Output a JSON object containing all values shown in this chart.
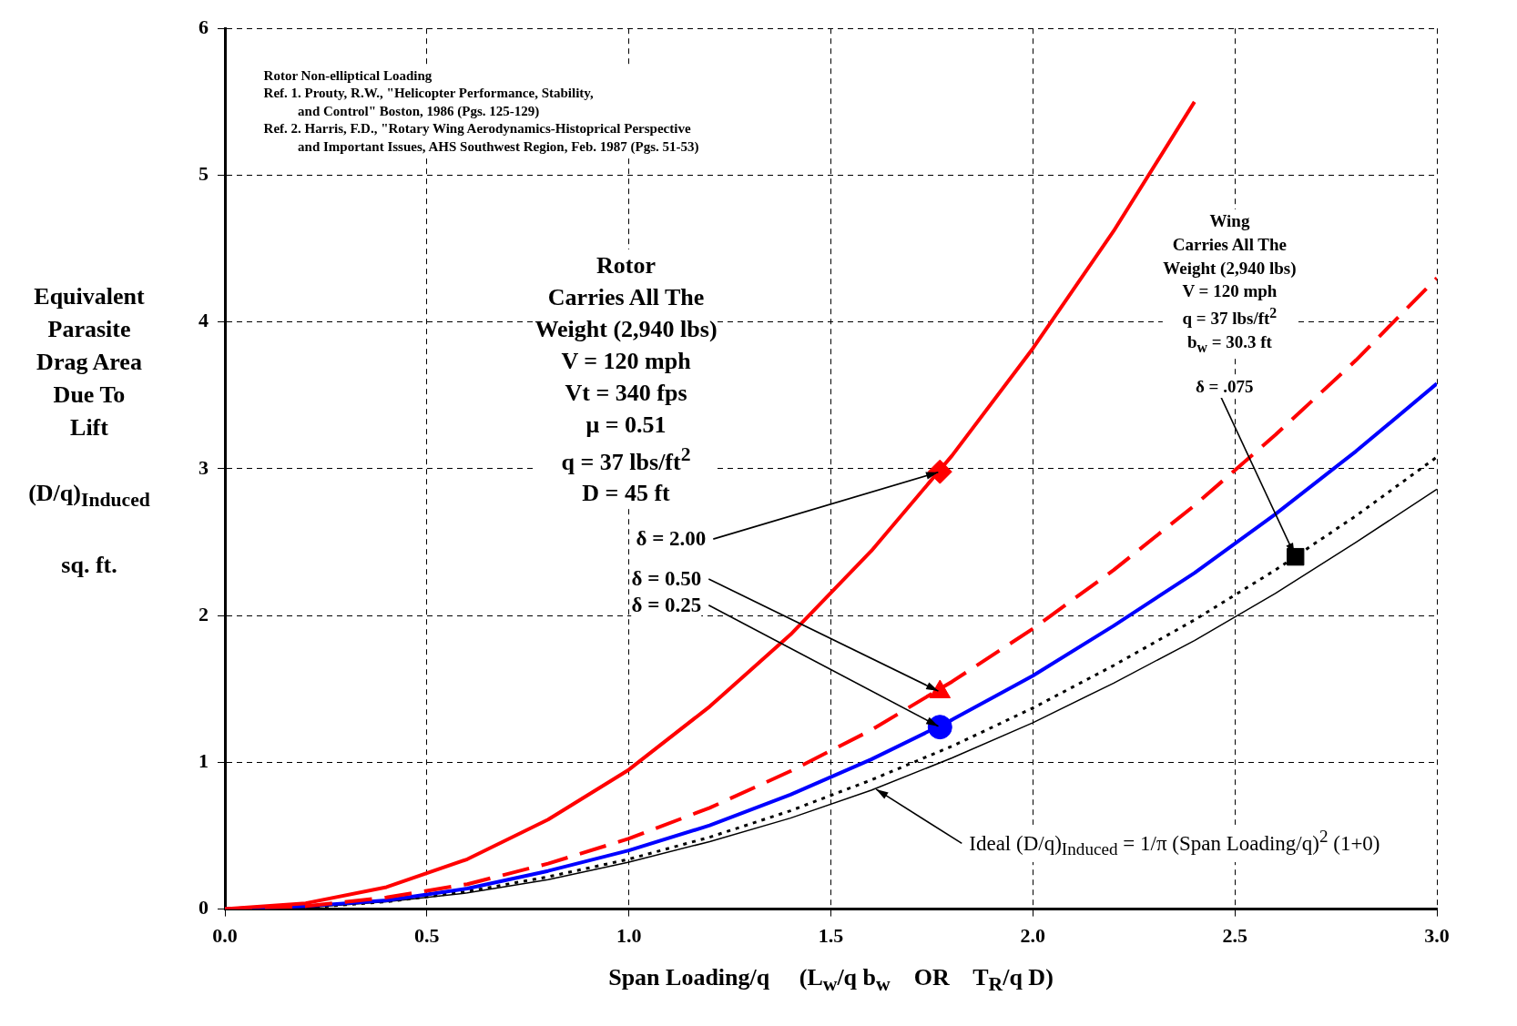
{
  "chart_data": {
    "type": "line",
    "xlabel": "Span Loading/q     (L$_{w}$/q b$_{w}$    OR    T$_{R}$/q D)",
    "ylabel": "Equivalent\nParasite\nDrag Area\nDue To\nLift\n\n(D/q)$_{Induced}$\n\nsq. ft.",
    "xlim": [
      0,
      3
    ],
    "xticks": [
      {
        "value": 0,
        "label": "0.0"
      },
      {
        "value": 0.5,
        "label": "0.5"
      },
      {
        "value": 1,
        "label": "1.0"
      },
      {
        "value": 1.5,
        "label": "1.5"
      },
      {
        "value": 2,
        "label": "2.0"
      },
      {
        "value": 2.5,
        "label": "2.5"
      },
      {
        "value": 3,
        "label": "3.0"
      }
    ],
    "ylim": [
      0,
      6
    ],
    "yticks": [
      0,
      1,
      2,
      3,
      4,
      5,
      6
    ],
    "grid": true,
    "series": [
      {
        "color": "#ff0000",
        "line_style": "solid",
        "x": [
          0,
          0.2,
          0.4,
          0.6,
          0.8,
          1,
          1.2,
          1.4,
          1.6,
          1.8,
          2,
          2.2,
          2.4
        ],
        "values": [
          0,
          0.04,
          0.15,
          0.34,
          0.61,
          0.95,
          1.38,
          1.87,
          2.44,
          3.09,
          3.82,
          4.62,
          5.5
        ]
      },
      {
        "color": "#ff0000",
        "line_style": "dashed",
        "x": [
          0,
          0.2,
          0.4,
          0.6,
          0.8,
          1,
          1.2,
          1.4,
          1.6,
          1.8,
          2,
          2.2,
          2.4,
          2.6,
          2.8,
          3
        ],
        "values": [
          0,
          0.02,
          0.08,
          0.17,
          0.31,
          0.48,
          0.69,
          0.94,
          1.22,
          1.55,
          1.91,
          2.31,
          2.75,
          3.23,
          3.74,
          4.3
        ]
      },
      {
        "color": "#0000ff",
        "line_style": "solid",
        "x": [
          0,
          0.2,
          0.4,
          0.6,
          0.8,
          1,
          1.2,
          1.4,
          1.6,
          1.8,
          2,
          2.2,
          2.4,
          2.6,
          2.8,
          3
        ],
        "values": [
          0,
          0.02,
          0.06,
          0.14,
          0.26,
          0.4,
          0.57,
          0.78,
          1.02,
          1.29,
          1.59,
          1.93,
          2.29,
          2.69,
          3.12,
          3.58
        ]
      },
      {
        "color": "#000000",
        "line_style": "dotted",
        "x": [
          0,
          0.2,
          0.4,
          0.6,
          0.8,
          1,
          1.2,
          1.4,
          1.6,
          1.8,
          2,
          2.2,
          2.4,
          2.6,
          2.8,
          3
        ],
        "values": [
          0,
          0.01,
          0.05,
          0.12,
          0.22,
          0.34,
          0.49,
          0.67,
          0.88,
          1.11,
          1.37,
          1.66,
          1.97,
          2.31,
          2.68,
          3.08
        ]
      },
      {
        "color": "#000000",
        "line_style": "solid",
        "x": [
          0,
          0.2,
          0.4,
          0.6,
          0.8,
          1,
          1.2,
          1.4,
          1.6,
          1.8,
          2,
          2.2,
          2.4,
          2.6,
          2.8,
          3
        ],
        "values": [
          0,
          0.01,
          0.05,
          0.11,
          0.2,
          0.32,
          0.46,
          0.62,
          0.81,
          1.03,
          1.27,
          1.54,
          1.83,
          2.15,
          2.5,
          2.86
        ]
      },
      {
        "type": "scatter",
        "marker": "diamond",
        "color": "#ff0000",
        "x": [
          1.77
        ],
        "values": [
          2.98
        ]
      },
      {
        "type": "scatter",
        "marker": "triangle",
        "color": "#ff0000",
        "x": [
          1.77
        ],
        "values": [
          1.48
        ]
      },
      {
        "type": "scatter",
        "marker": "circle",
        "color": "#0000ff",
        "x": [
          1.77
        ],
        "values": [
          1.24
        ]
      },
      {
        "type": "scatter",
        "marker": "square",
        "color": "#000000",
        "x": [
          2.65
        ],
        "values": [
          2.4
        ]
      }
    ],
    "annotations": [
      "Rotor Non-elliptical Loading\nRef. 1. Prouty, R.W., \"Helicopter Performance, Stability,\n          and Control\" Boston, 1986 (Pgs. 125-129)\nRef. 2. Harris, F.D., \"Rotary Wing Aerodynamics-Histoprical Perspective\n          and Important Issues, AHS Southwest Region, Feb. 1987 (Pgs. 51-53)",
      "Rotor\nCarries All The\nWeight (2,940 lbs)\nV = 120 mph\nVt = 340 fps\nμ = 0.51\nq = 37 lbs/ft$^{2}$\nD = 45 ft",
      "Wing\nCarries All The\nWeight (2,940 lbs)\nV = 120 mph\nq = 37 lbs/ft$^{2}$\nb$_{w}$ = 30.3 ft",
      {
        "text": "δ = .075",
        "x": 2.65,
        "y": 2.4
      },
      {
        "text": "δ = 2.00",
        "x": 1.77,
        "y": 2.98
      },
      {
        "text": "δ = 0.50",
        "x": 1.77,
        "y": 1.48
      },
      {
        "text": "δ = 0.25",
        "x": 1.77,
        "y": 1.24
      },
      {
        "text": "Ideal (D/q)$_{Induced}$ = 1/π (Span Loading/q)$^{2}$ (1+0)",
        "x": 1.61,
        "y": 0.82
      }
    ]
  }
}
